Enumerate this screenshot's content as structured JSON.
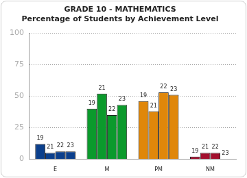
{
  "chart_data": {
    "type": "bar",
    "title": "GRADE 10 - MATHEMATICS",
    "subtitle": "Percentage of Students by Achievement Level",
    "categories": [
      "E",
      "M",
      "PM",
      "NM"
    ],
    "colors": [
      "#0b3f8c",
      "#0b9a2c",
      "#e0870a",
      "#a3102e"
    ],
    "series": [
      {
        "name": "19",
        "values": [
          12,
          40,
          46,
          2
        ]
      },
      {
        "name": "21",
        "values": [
          5,
          52,
          38,
          5
        ]
      },
      {
        "name": "22",
        "values": [
          6,
          35,
          53,
          5
        ]
      },
      {
        "name": "23",
        "values": [
          6,
          43,
          51,
          0
        ]
      }
    ],
    "ylim": [
      0,
      100
    ],
    "yticks": [
      0,
      25,
      50,
      75,
      100
    ],
    "grid": true
  }
}
